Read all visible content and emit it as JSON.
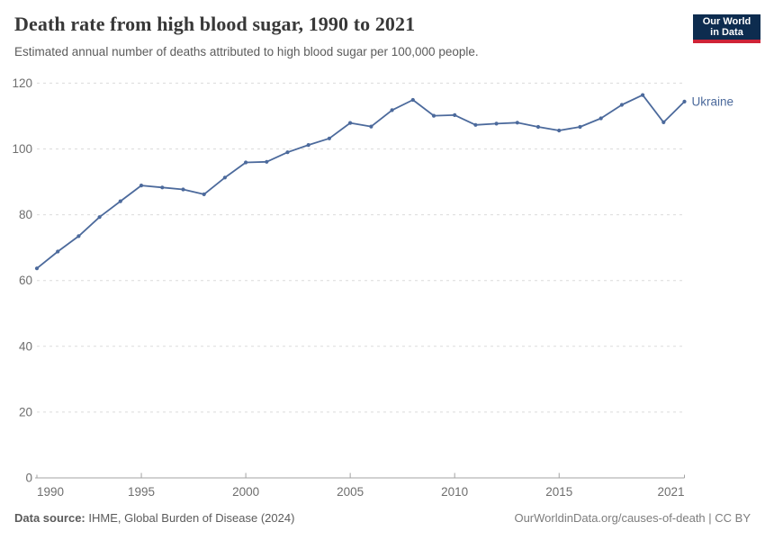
{
  "header": {
    "title": "Death rate from high blood sugar, 1990 to 2021",
    "subtitle": "Estimated annual number of deaths attributed to high blood sugar per 100,000 people."
  },
  "logo": {
    "line1": "Our World",
    "line2": "in Data",
    "bg_color": "#0d2c4f",
    "accent_color": "#cf2437"
  },
  "footer": {
    "source_label": "Data source:",
    "source_text": " IHME, Global Burden of Disease (2024)",
    "credit": "OurWorldinData.org/causes-of-death | CC BY"
  },
  "chart_data": {
    "type": "line",
    "title": "Death rate from high blood sugar, 1990 to 2021",
    "xlabel": "",
    "ylabel": "",
    "xlim": [
      1990,
      2021
    ],
    "ylim": [
      0,
      120
    ],
    "y_ticks": [
      0,
      20,
      40,
      60,
      80,
      100,
      120
    ],
    "x_ticks": [
      1990,
      1995,
      2000,
      2005,
      2010,
      2015,
      2021
    ],
    "x_tick_labels": [
      "1990",
      "1995",
      "2000",
      "2005",
      "2010",
      "2015",
      "2021"
    ],
    "grid": "dashed-horizontal",
    "legend_position": "end-of-line",
    "axis_color": "#a3a3a3",
    "grid_color": "#dcdcdc",
    "tick_label_color": "#6e6e6e",
    "series": [
      {
        "name": "Ukraine",
        "color": "#4c6a9c",
        "x": [
          1990,
          1991,
          1992,
          1993,
          1994,
          1995,
          1996,
          1997,
          1998,
          1999,
          2000,
          2001,
          2002,
          2003,
          2004,
          2005,
          2006,
          2007,
          2008,
          2009,
          2010,
          2011,
          2012,
          2013,
          2014,
          2015,
          2016,
          2017,
          2018,
          2019,
          2020,
          2021
        ],
        "values": [
          63.7,
          68.8,
          73.5,
          79.3,
          84.1,
          88.9,
          88.3,
          87.7,
          86.2,
          91.3,
          95.9,
          96.1,
          99.0,
          101.2,
          103.2,
          107.9,
          106.8,
          111.8,
          114.9,
          110.1,
          110.3,
          107.3,
          107.7,
          108.0,
          106.7,
          105.6,
          106.7,
          109.3,
          113.4,
          116.4,
          108.1,
          114.4
        ]
      }
    ]
  }
}
